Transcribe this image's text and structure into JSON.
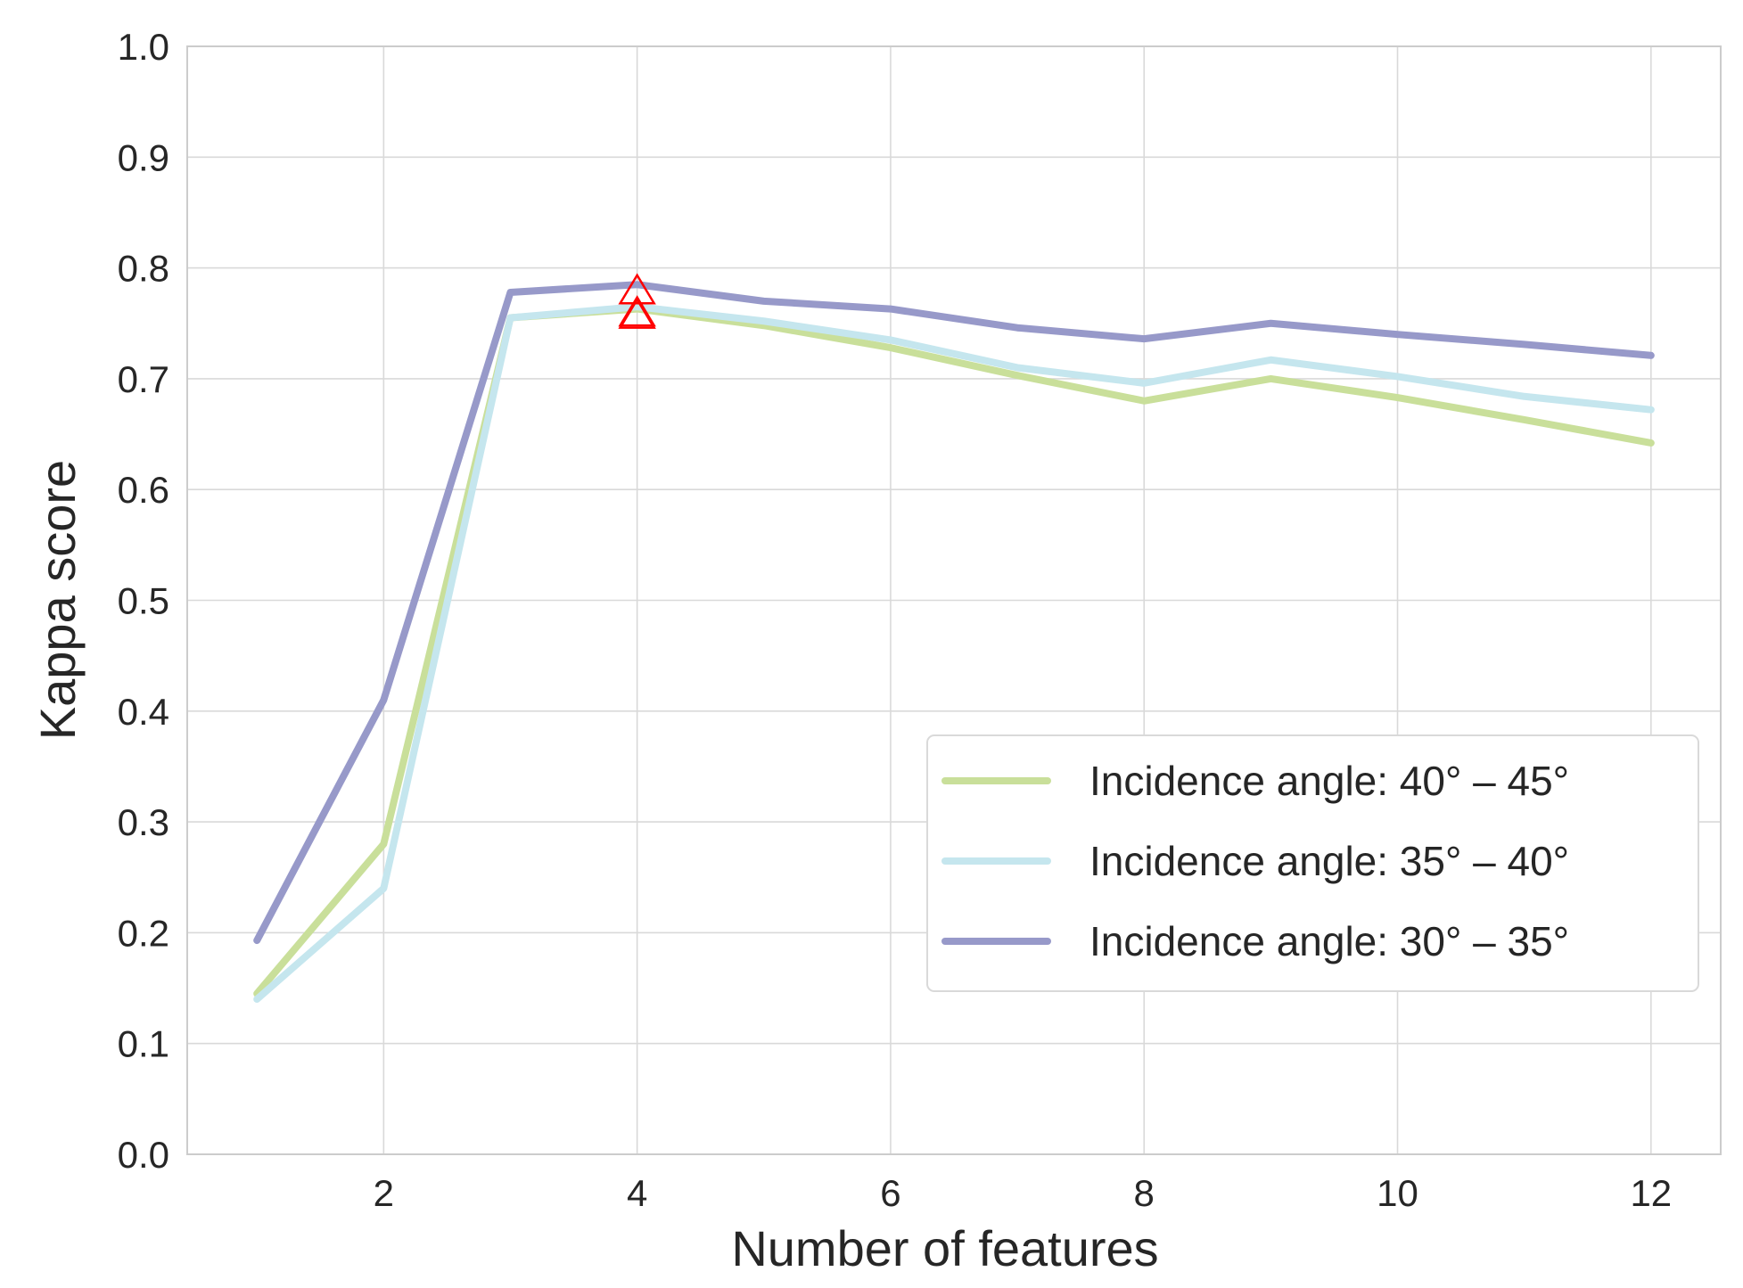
{
  "chart_data": {
    "type": "line",
    "title": "",
    "xlabel": "Number of features",
    "ylabel": "Kappa score",
    "xlim": [
      0.45,
      12.55
    ],
    "ylim": [
      0.0,
      1.0
    ],
    "xticks": [
      2,
      4,
      6,
      8,
      10,
      12
    ],
    "xtick_labels": [
      "2",
      "4",
      "6",
      "8",
      "10",
      "12"
    ],
    "yticks": [
      0.0,
      0.1,
      0.2,
      0.3,
      0.4,
      0.5,
      0.6,
      0.7,
      0.8,
      0.9,
      1.0
    ],
    "ytick_labels": [
      "0.0",
      "0.1",
      "0.2",
      "0.3",
      "0.4",
      "0.5",
      "0.6",
      "0.7",
      "0.8",
      "0.9",
      "1.0"
    ],
    "grid": true,
    "legend_position": "center-right",
    "x": [
      1,
      2,
      3,
      4,
      5,
      6,
      7,
      8,
      9,
      10,
      11,
      12
    ],
    "series": [
      {
        "name": "Incidence angle: 40° – 45°",
        "color": "#c9df9a",
        "values": [
          0.145,
          0.28,
          0.755,
          0.763,
          0.748,
          0.728,
          0.703,
          0.68,
          0.7,
          0.683,
          0.663,
          0.642
        ]
      },
      {
        "name": "Incidence angle: 35° – 40°",
        "color": "#c5e6ee",
        "values": [
          0.14,
          0.24,
          0.755,
          0.765,
          0.752,
          0.735,
          0.71,
          0.696,
          0.717,
          0.702,
          0.684,
          0.672
        ]
      },
      {
        "name": "Incidence angle: 30° – 35°",
        "color": "#9799c9",
        "values": [
          0.193,
          0.41,
          0.778,
          0.785,
          0.77,
          0.763,
          0.746,
          0.736,
          0.75,
          0.74,
          0.731,
          0.721
        ]
      }
    ],
    "markers": [
      {
        "x": 4,
        "y": 0.785,
        "shape": "triangle-open",
        "color": "#ff0000"
      },
      {
        "x": 4,
        "y": 0.765,
        "shape": "triangle-open",
        "color": "#ff0000"
      },
      {
        "x": 4,
        "y": 0.763,
        "shape": "triangle-open",
        "color": "#ff0000"
      }
    ]
  }
}
